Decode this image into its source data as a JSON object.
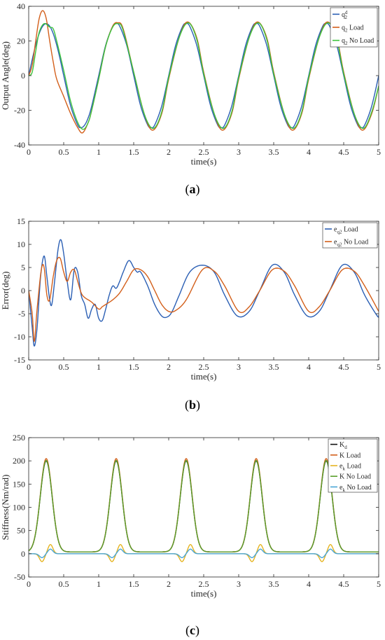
{
  "chart_data": [
    {
      "type": "line",
      "panel": "a",
      "caption": "(a)",
      "xlabel": "time(s)",
      "ylabel": "Output Angle(deg)",
      "xlim": [
        0,
        5
      ],
      "ylim": [
        -40,
        40
      ],
      "xticks": [
        "0",
        "0.5",
        "1",
        "1.5",
        "2",
        "2.5",
        "3",
        "3.5",
        "4",
        "4.5",
        "5"
      ],
      "yticks": [
        "40",
        "20",
        "0",
        "-20",
        "-40"
      ],
      "legend_position": "top-right",
      "series": [
        {
          "name": "q2d",
          "legend": {
            "base": "q",
            "sub": "2",
            "sup": "d",
            "suffix": ""
          },
          "color": "#2b5fb4",
          "x": [
            0,
            0.05,
            0.1,
            0.15,
            0.2,
            0.25,
            0.3,
            0.35,
            0.4,
            0.45,
            0.5,
            0.6,
            0.7,
            0.75,
            0.8,
            0.85,
            0.9,
            1.0,
            1.1,
            1.2,
            1.25,
            1.3,
            1.4,
            1.5,
            1.6,
            1.7,
            1.75,
            1.8,
            1.9,
            2.0,
            2.1,
            2.2,
            2.25,
            2.3,
            2.4,
            2.5,
            2.6,
            2.7,
            2.75,
            2.8,
            2.9,
            3.0,
            3.1,
            3.2,
            3.25,
            3.3,
            3.4,
            3.5,
            3.6,
            3.7,
            3.75,
            3.8,
            3.9,
            4.0,
            4.1,
            4.2,
            4.25,
            4.3,
            4.4,
            4.5,
            4.6,
            4.7,
            4.75,
            4.8,
            4.9,
            5.0
          ],
          "y": [
            0,
            9.3,
            17.6,
            24.3,
            28.5,
            30,
            28.5,
            24.3,
            17.6,
            9.3,
            0,
            -17.6,
            -28.5,
            -30,
            -28.5,
            -24.3,
            -17.6,
            0,
            17.6,
            28.5,
            30,
            28.5,
            17.6,
            0,
            -17.6,
            -28.5,
            -30,
            -28.5,
            -17.6,
            0,
            17.6,
            28.5,
            30,
            28.5,
            17.6,
            0,
            -17.6,
            -28.5,
            -30,
            -28.5,
            -17.6,
            0,
            17.6,
            28.5,
            30,
            28.5,
            17.6,
            0,
            -17.6,
            -28.5,
            -30,
            -28.5,
            -17.6,
            0,
            17.6,
            28.5,
            30,
            28.5,
            17.6,
            0,
            -17.6,
            -28.5,
            -30,
            -28.5,
            -17.6,
            0
          ]
        },
        {
          "name": "q2 Load",
          "legend": {
            "base": "q",
            "sub": "2",
            "sup": "",
            "suffix": " Load"
          },
          "color": "#d35f1a",
          "x": [
            0,
            0.05,
            0.1,
            0.15,
            0.2,
            0.25,
            0.3,
            0.35,
            0.4,
            0.5,
            0.6,
            0.7,
            0.77,
            0.85,
            0.9,
            1.0,
            1.1,
            1.2,
            1.27,
            1.35,
            1.5,
            1.65,
            1.77,
            1.9,
            2.0,
            2.15,
            2.27,
            2.4,
            2.5,
            2.65,
            2.77,
            2.9,
            3.0,
            3.15,
            3.27,
            3.4,
            3.5,
            3.65,
            3.77,
            3.9,
            4.0,
            4.15,
            4.27,
            4.4,
            4.5,
            4.65,
            4.77,
            4.9,
            5.0
          ],
          "y": [
            0,
            6,
            20,
            33,
            37.5,
            33,
            20,
            8,
            -2,
            -12,
            -22,
            -30,
            -33,
            -27,
            -20,
            -2,
            17,
            28.5,
            30.5,
            27,
            2,
            -22,
            -31.5,
            -22,
            -2,
            22,
            31,
            22,
            2,
            -22,
            -31.5,
            -22,
            -2,
            22,
            31,
            22,
            2,
            -22,
            -31.5,
            -22,
            -2,
            22,
            31,
            22,
            2,
            -22,
            -31.5,
            -22,
            -6
          ]
        },
        {
          "name": "q2 No Load",
          "legend": {
            "base": "q",
            "sub": "2",
            "sup": "",
            "suffix": " No Load"
          },
          "color": "#3dc43d",
          "x": [
            0,
            0.05,
            0.1,
            0.15,
            0.22,
            0.3,
            0.35,
            0.4,
            0.5,
            0.6,
            0.7,
            0.78,
            0.85,
            0.9,
            1.0,
            1.1,
            1.2,
            1.28,
            1.35,
            1.5,
            1.65,
            1.78,
            1.9,
            2.0,
            2.15,
            2.28,
            2.4,
            2.5,
            2.65,
            2.78,
            2.9,
            3.0,
            3.15,
            3.28,
            3.4,
            3.5,
            3.65,
            3.78,
            3.9,
            4.0,
            4.15,
            4.28,
            4.4,
            4.5,
            4.65,
            4.78,
            4.9,
            5.0
          ],
          "y": [
            0,
            2,
            14,
            25,
            30,
            28,
            27,
            20,
            3,
            -15,
            -27,
            -31,
            -27,
            -20,
            -2,
            17,
            28,
            30,
            26,
            2,
            -22,
            -30.5,
            -21,
            -1,
            22,
            30.5,
            21,
            1,
            -22,
            -30.5,
            -21,
            -1,
            22,
            30.5,
            21,
            1,
            -22,
            -30.5,
            -21,
            -1,
            22,
            30.5,
            21,
            1,
            -22,
            -30.5,
            -21,
            -6
          ]
        }
      ]
    },
    {
      "type": "line",
      "panel": "b",
      "caption": "(b)",
      "xlabel": "time(s)",
      "ylabel": "Error(deg)",
      "xlim": [
        0,
        5
      ],
      "ylim": [
        -15,
        15
      ],
      "xticks": [
        "0",
        "0.5",
        "1",
        "1.5",
        "2",
        "2.5",
        "3",
        "3.5",
        "4",
        "4.5",
        "5"
      ],
      "yticks": [
        "15",
        "10",
        "5",
        "0",
        "-5",
        "-10",
        "-15"
      ],
      "legend_position": "top-right",
      "series": [
        {
          "name": "eq2 Load",
          "legend": {
            "base": "e",
            "sub": "q2",
            "sup": "",
            "suffix": " Load"
          },
          "color": "#2b5fb4",
          "x": [
            0,
            0.05,
            0.08,
            0.12,
            0.17,
            0.22,
            0.26,
            0.3,
            0.33,
            0.37,
            0.42,
            0.46,
            0.5,
            0.55,
            0.6,
            0.65,
            0.7,
            0.75,
            0.8,
            0.85,
            0.9,
            0.95,
            1.0,
            1.05,
            1.1,
            1.15,
            1.2,
            1.25,
            1.3,
            1.35,
            1.43,
            1.5,
            1.55,
            1.6,
            1.7,
            1.8,
            1.9,
            1.98,
            2.05,
            2.15,
            2.3,
            2.48,
            2.65,
            2.8,
            2.98,
            3.15,
            3.3,
            3.48,
            3.65,
            3.8,
            3.98,
            4.15,
            4.3,
            4.48,
            4.65,
            4.8,
            4.98,
            5.0
          ],
          "y": [
            0,
            -8,
            -12,
            -8,
            3,
            7.5,
            3,
            -2,
            -3,
            2,
            9,
            11,
            8,
            2,
            -2,
            4.5,
            4,
            -1,
            -3,
            -6,
            -4,
            -3,
            -6,
            -6.5,
            -4,
            -1,
            1,
            0.5,
            2,
            4,
            6.5,
            5,
            4,
            4,
            1,
            -3,
            -5.5,
            -5.7,
            -4.5,
            -1,
            4,
            5.5,
            4,
            -1,
            -5.5,
            -4.5,
            0,
            5.5,
            4,
            -1,
            -5.5,
            -4.5,
            0,
            5.5,
            4,
            -1,
            -5.5,
            -5.3
          ]
        },
        {
          "name": "eq2 No Load",
          "legend": {
            "base": "e",
            "sub": "q2",
            "sup": "",
            "suffix": " No Load"
          },
          "color": "#d35f1a",
          "x": [
            0,
            0.05,
            0.08,
            0.12,
            0.18,
            0.22,
            0.26,
            0.3,
            0.35,
            0.4,
            0.45,
            0.5,
            0.55,
            0.6,
            0.65,
            0.7,
            0.75,
            0.8,
            0.9,
            1.0,
            1.05,
            1.1,
            1.2,
            1.3,
            1.4,
            1.5,
            1.6,
            1.7,
            1.8,
            1.9,
            2.0,
            2.1,
            2.25,
            2.48,
            2.65,
            2.8,
            3.0,
            3.15,
            3.3,
            3.48,
            3.65,
            3.8,
            4.0,
            4.15,
            4.3,
            4.48,
            4.65,
            4.8,
            5.0
          ],
          "y": [
            0,
            -5,
            -11,
            -4,
            4.5,
            5,
            -1,
            -2,
            3,
            6.5,
            7,
            4,
            2,
            4,
            4.5,
            2,
            -0.5,
            -1.5,
            -2.5,
            -4,
            -3.5,
            -3,
            -2,
            -0.5,
            2,
            4.5,
            4.5,
            3,
            0,
            -3,
            -4.5,
            -4.3,
            -2,
            4.5,
            4.2,
            1,
            -4.5,
            -3.5,
            0,
            4.5,
            4.2,
            1,
            -4.5,
            -3.5,
            0,
            4.5,
            4.2,
            1,
            -4.5
          ]
        }
      ]
    },
    {
      "type": "line",
      "panel": "c",
      "caption": "(c)",
      "xlabel": "time(s)",
      "ylabel": "Stiffness(Nm/rad)",
      "xlim": [
        0,
        5
      ],
      "ylim": [
        -50,
        250
      ],
      "xticks": [
        "0",
        "0.5",
        "1",
        "1.5",
        "2",
        "2.5",
        "3",
        "3.5",
        "4",
        "4.5",
        "5"
      ],
      "yticks": [
        "250",
        "200",
        "150",
        "100",
        "50",
        "0",
        "-50"
      ],
      "legend_position": "top-right",
      "peaks_at": [
        0.25,
        1.25,
        2.25,
        3.25,
        4.25
      ],
      "series": [
        {
          "name": "Kd",
          "legend": {
            "base": "K",
            "sub": "d",
            "sup": "",
            "suffix": ""
          },
          "color": "#111111",
          "baseline": 4,
          "peak": 200,
          "shape": "peak"
        },
        {
          "name": "K Load",
          "legend": {
            "base": "K",
            "sub": "",
            "sup": "",
            "suffix": "  Load"
          },
          "color": "#d35f1a",
          "baseline": 4,
          "peak": 205,
          "shape": "peak"
        },
        {
          "name": "ek Load",
          "legend": {
            "base": "e",
            "sub": "k",
            "sup": "",
            "suffix": " Load"
          },
          "color": "#e6b422",
          "amplitude": 20,
          "shape": "error"
        },
        {
          "name": "K No Load",
          "legend": {
            "base": "K",
            "sub": "",
            "sup": "",
            "suffix": "  No Load"
          },
          "color": "#5aa02c",
          "baseline": 4,
          "peak": 201,
          "shape": "peak"
        },
        {
          "name": "ek No Load",
          "legend": {
            "base": "e",
            "sub": "k",
            "sup": "",
            "suffix": " No Load"
          },
          "color": "#4aa6d6",
          "amplitude": 10,
          "shape": "error"
        }
      ]
    }
  ]
}
